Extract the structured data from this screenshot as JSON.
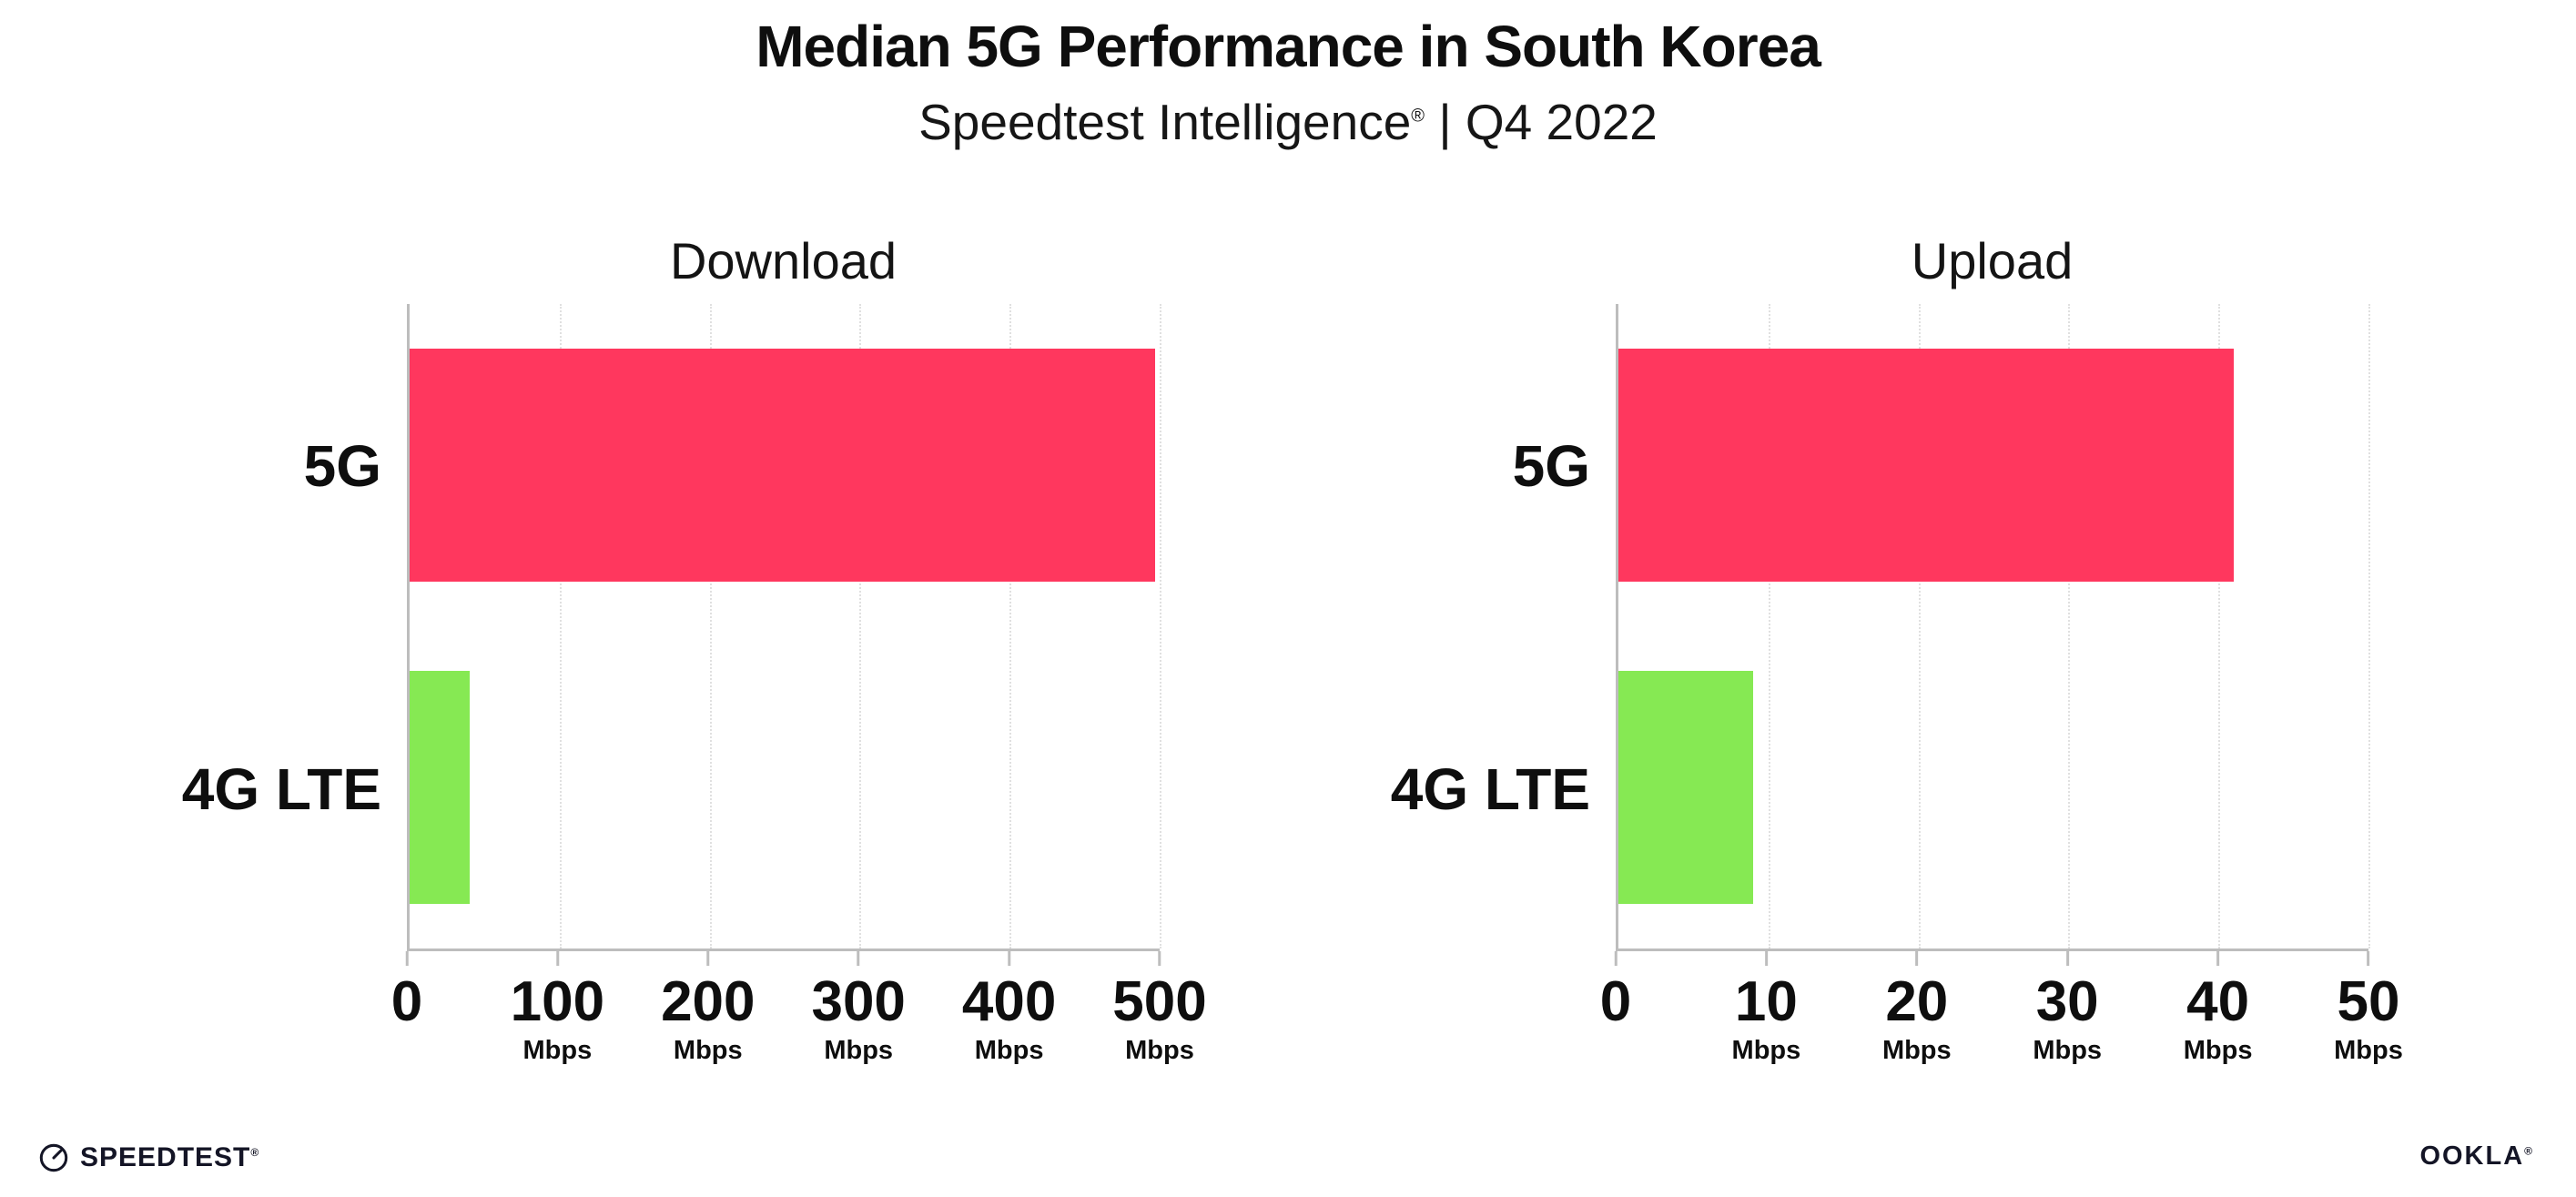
{
  "header": {
    "title": "Median 5G Performance in South Korea",
    "subtitle_brand": "Speedtest Intelligence",
    "subtitle_reg": "®",
    "subtitle_rest": " | Q4 2022"
  },
  "footer": {
    "speedtest_wordmark": "SPEEDTEST",
    "speedtest_reg": "®",
    "ookla_wordmark": "OOKLA",
    "ookla_reg": "®"
  },
  "colors": {
    "bar_5g": "#ff375e",
    "bar_4g_lte": "#86e953",
    "axis": "#bdbdbd",
    "grid": "#e0e0e0",
    "footer": "#141526"
  },
  "chart_data": [
    {
      "type": "bar",
      "orientation": "horizontal",
      "title": "Download",
      "categories": [
        "5G",
        "4G LTE"
      ],
      "values": [
        497,
        40
      ],
      "unit": "Mbps",
      "xlim": [
        0,
        500
      ],
      "xticks": [
        0,
        100,
        200,
        300,
        400,
        500
      ],
      "grid": true,
      "legend": "none",
      "bar_colors": [
        "#ff375e",
        "#86e953"
      ]
    },
    {
      "type": "bar",
      "orientation": "horizontal",
      "title": "Upload",
      "categories": [
        "5G",
        "4G LTE"
      ],
      "values": [
        41,
        9
      ],
      "unit": "Mbps",
      "xlim": [
        0,
        50
      ],
      "xticks": [
        0,
        10,
        20,
        30,
        40,
        50
      ],
      "grid": true,
      "legend": "none",
      "bar_colors": [
        "#ff375e",
        "#86e953"
      ]
    }
  ]
}
